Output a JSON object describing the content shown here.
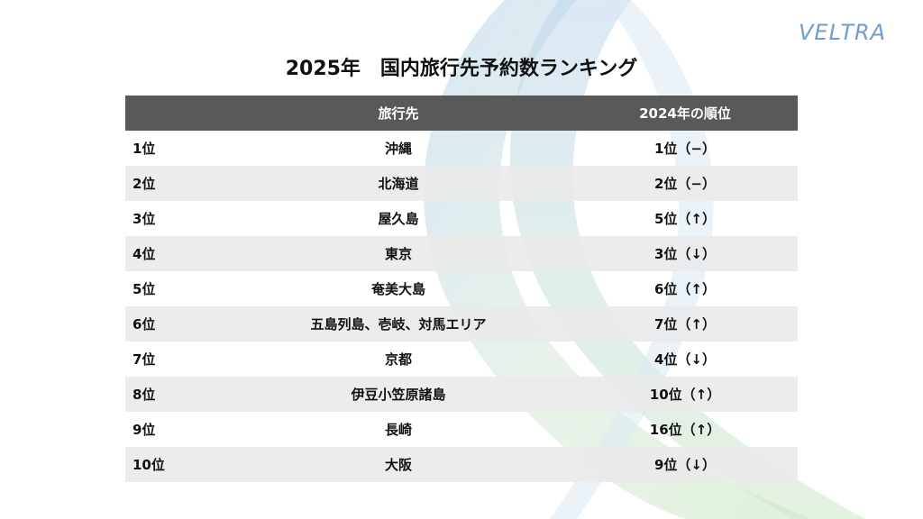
{
  "title": "2025年　国内旅行先予約数ランキング",
  "logo_text": "VELTRA",
  "colors": {
    "header_bg": "#595959",
    "header_text": "#ffffff",
    "row_shade": "#e9e9e9",
    "logo": "#6f9ec9"
  },
  "table": {
    "headers": {
      "rank": "",
      "destination": "旅行先",
      "previous": "2024年の順位"
    },
    "rows": [
      {
        "rank": "1位",
        "destination": "沖縄",
        "previous": "1位（−）"
      },
      {
        "rank": "2位",
        "destination": "北海道",
        "previous": "2位（−）"
      },
      {
        "rank": "3位",
        "destination": "屋久島",
        "previous": "5位（↑）"
      },
      {
        "rank": "4位",
        "destination": "東京",
        "previous": "3位（↓）"
      },
      {
        "rank": "5位",
        "destination": "奄美大島",
        "previous": "6位（↑）"
      },
      {
        "rank": "6位",
        "destination": "五島列島、壱岐、対馬エリア",
        "previous": "7位（↑）"
      },
      {
        "rank": "7位",
        "destination": "京都",
        "previous": "4位（↓）"
      },
      {
        "rank": "8位",
        "destination": "伊豆小笠原諸島",
        "previous": "10位（↑）"
      },
      {
        "rank": "9位",
        "destination": "長崎",
        "previous": "16位（↑）"
      },
      {
        "rank": "10位",
        "destination": "大阪",
        "previous": "9位（↓）"
      }
    ]
  }
}
